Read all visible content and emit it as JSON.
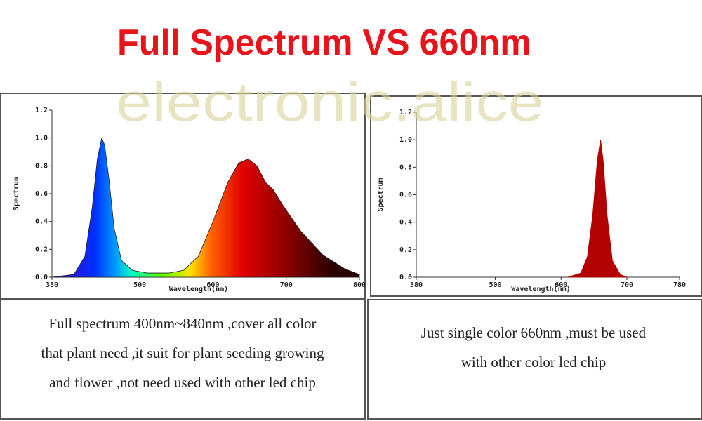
{
  "title": "Full Spectrum VS 660nm",
  "watermark": "electronic.alice",
  "chart_data": [
    {
      "type": "area",
      "x_label": "Wavelength(nm)",
      "y_label": "Spectrum",
      "x": [
        380,
        410,
        425,
        435,
        442,
        448,
        452,
        458,
        465,
        475,
        490,
        510,
        540,
        560,
        580,
        600,
        620,
        635,
        648,
        660,
        672,
        682,
        695,
        720,
        750,
        780,
        800
      ],
      "values": [
        0,
        0.02,
        0.15,
        0.5,
        0.85,
        1.0,
        0.95,
        0.7,
        0.35,
        0.12,
        0.05,
        0.03,
        0.03,
        0.05,
        0.15,
        0.4,
        0.68,
        0.82,
        0.85,
        0.8,
        0.68,
        0.63,
        0.52,
        0.33,
        0.16,
        0.06,
        0.02
      ],
      "xlim": [
        380,
        800
      ],
      "xticks": [
        380,
        500,
        600,
        700,
        800
      ],
      "ylim": [
        0,
        1.2
      ],
      "yticks": [
        {
          "value": 0,
          "label": "0.0"
        },
        0.2,
        0.4,
        0.6,
        0.8,
        {
          "value": 1,
          "label": "1.0"
        },
        1.2
      ]
    },
    {
      "type": "area",
      "x_label": "Wavelength(nm)",
      "y_label": "Spectrum",
      "color": "#b30000",
      "x": [
        610,
        630,
        640,
        648,
        655,
        660,
        664,
        670,
        678,
        690,
        700
      ],
      "values": [
        0,
        0.03,
        0.15,
        0.45,
        0.85,
        1.0,
        0.85,
        0.45,
        0.12,
        0.02,
        0
      ],
      "xlim": [
        380,
        780
      ],
      "xticks": [
        380,
        500,
        600,
        700,
        780
      ],
      "ylim": [
        0,
        1.2
      ],
      "yticks": [
        {
          "value": 0,
          "label": "0.0"
        },
        0.2,
        0.4,
        0.6,
        0.8,
        {
          "value": 1,
          "label": "1.0"
        },
        1.2
      ]
    }
  ],
  "captions": [
    {
      "lines": [
        "Full spectrum 400nm~840nm ,cover all color",
        "that plant need ,it suit for plant seeding growing",
        "and flower ,not need used with other led chip"
      ]
    },
    {
      "lines": [
        "Just single color 660nm ,must be used",
        "with other color led chip"
      ]
    }
  ]
}
